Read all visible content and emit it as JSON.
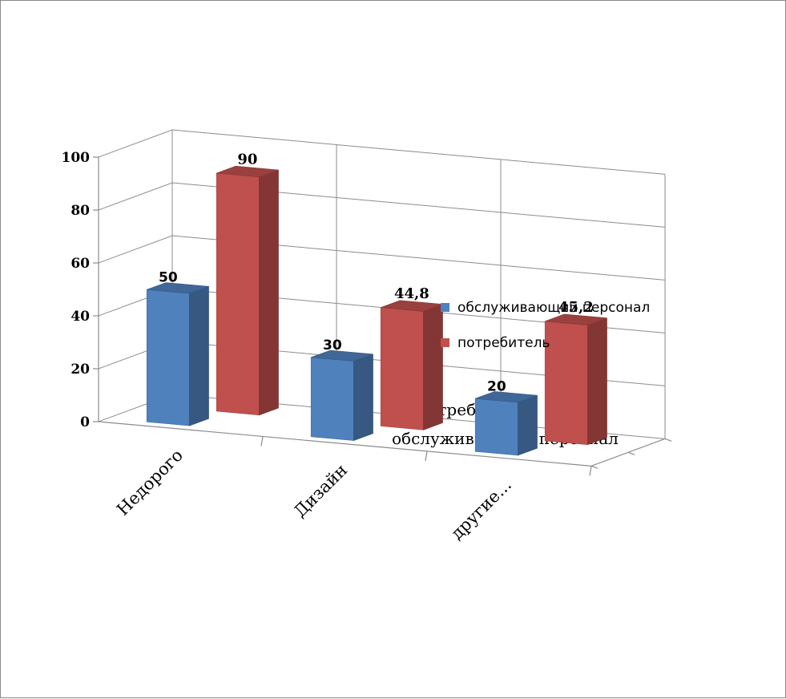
{
  "chart_data": {
    "type": "bar",
    "title": "",
    "categories": [
      "Недорого",
      "Дизайн",
      "другие..."
    ],
    "series": [
      {
        "name": "обслуживающий персонал",
        "values": [
          50,
          30,
          20
        ],
        "labels": [
          "50",
          "30",
          "20"
        ],
        "color": "#4f81bd"
      },
      {
        "name": "потребитель",
        "values": [
          90,
          44.8,
          45.2
        ],
        "labels": [
          "90",
          "44,8",
          "45,2"
        ],
        "color": "#c0504d"
      }
    ],
    "depth_labels": [
      "потребитель",
      "обслуживающий персонал"
    ],
    "y_ticks": [
      "0",
      "20",
      "40",
      "60",
      "80",
      "100"
    ],
    "ylim": [
      0,
      100
    ],
    "grid": true,
    "legend_position": "right",
    "style": "3d-clustered-column"
  }
}
